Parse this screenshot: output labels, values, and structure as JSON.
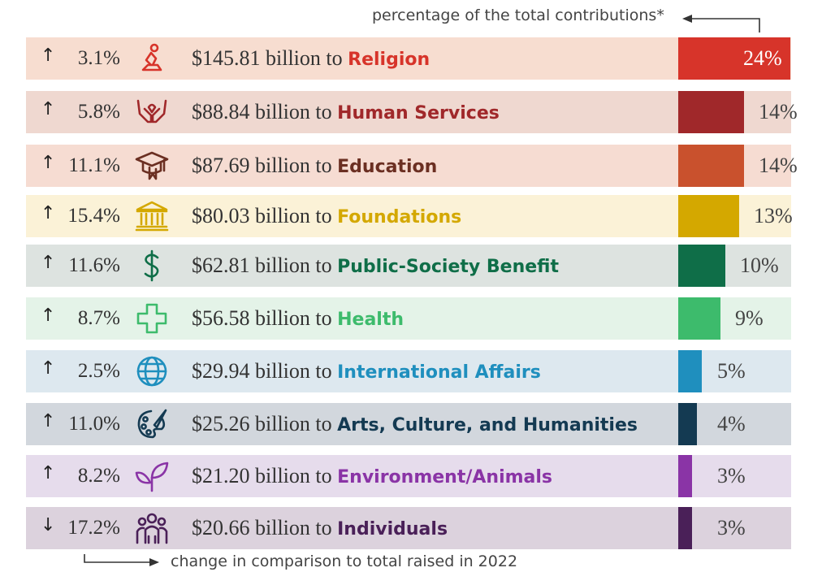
{
  "chart_data": {
    "type": "bar",
    "top_note": "percentage of the total contributions*",
    "bottom_note": "change in comparison to total raised in 2022",
    "amount_template": " billion to ",
    "max_percent": 24,
    "rows": [
      {
        "change_dir": "up",
        "change": "3.1%",
        "icon": "praying-person-icon",
        "amount": "$145.81",
        "category": "Religion",
        "percent": 24,
        "percent_label": "24%",
        "color": "#d7342a",
        "bg": "#f7ddd0"
      },
      {
        "change_dir": "up",
        "change": "5.8%",
        "icon": "helping-hands-icon",
        "amount": "$88.84",
        "category": "Human Services",
        "percent": 14,
        "percent_label": "14%",
        "color": "#a0282a",
        "bg": "#efd8d0"
      },
      {
        "change_dir": "up",
        "change": "11.1%",
        "icon": "graduation-cap-icon",
        "amount": "$87.69",
        "category": "Education",
        "percent": 14,
        "percent_label": "14%",
        "color": "#6b2f22",
        "bg": "#f6dcd2",
        "bar_color": "#c9512d"
      },
      {
        "change_dir": "up",
        "change": "15.4%",
        "icon": "institution-building-icon",
        "amount": "$80.03",
        "category": "Foundations",
        "percent": 13,
        "percent_label": "13%",
        "color": "#d4a800",
        "bg": "#fbf2d7"
      },
      {
        "change_dir": "up",
        "change": "11.6%",
        "icon": "dollar-sign-icon",
        "amount": "$62.81",
        "category": "Public-Society Benefit",
        "percent": 10,
        "percent_label": "10%",
        "color": "#0f6e48",
        "bg": "#dde3e0"
      },
      {
        "change_dir": "up",
        "change": "8.7%",
        "icon": "medical-cross-icon",
        "amount": "$56.58",
        "category": "Health",
        "percent": 9,
        "percent_label": "9%",
        "color": "#3dbb6c",
        "bg": "#e4f3e8"
      },
      {
        "change_dir": "up",
        "change": "2.5%",
        "icon": "globe-icon",
        "amount": "$29.94",
        "category": "International Affairs",
        "percent": 5,
        "percent_label": "5%",
        "color": "#1f8fbe",
        "bg": "#dde8ef"
      },
      {
        "change_dir": "up",
        "change": "11.0%",
        "icon": "paint-palette-icon",
        "amount": "$25.26",
        "category": "Arts, Culture, and Humanities",
        "percent": 4,
        "percent_label": "4%",
        "color": "#143a52",
        "bg": "#d2d7dd"
      },
      {
        "change_dir": "up",
        "change": "8.2%",
        "icon": "leaf-sprout-icon",
        "amount": "$21.20",
        "category": "Environment/Animals",
        "percent": 3,
        "percent_label": "3%",
        "color": "#8a34a6",
        "bg": "#e6dcec"
      },
      {
        "change_dir": "down",
        "change": "17.2%",
        "icon": "people-group-icon",
        "amount": "$20.66",
        "category": "Individuals",
        "percent": 3,
        "percent_label": "3%",
        "color": "#4a2058",
        "bg": "#dcd2dd"
      }
    ]
  }
}
